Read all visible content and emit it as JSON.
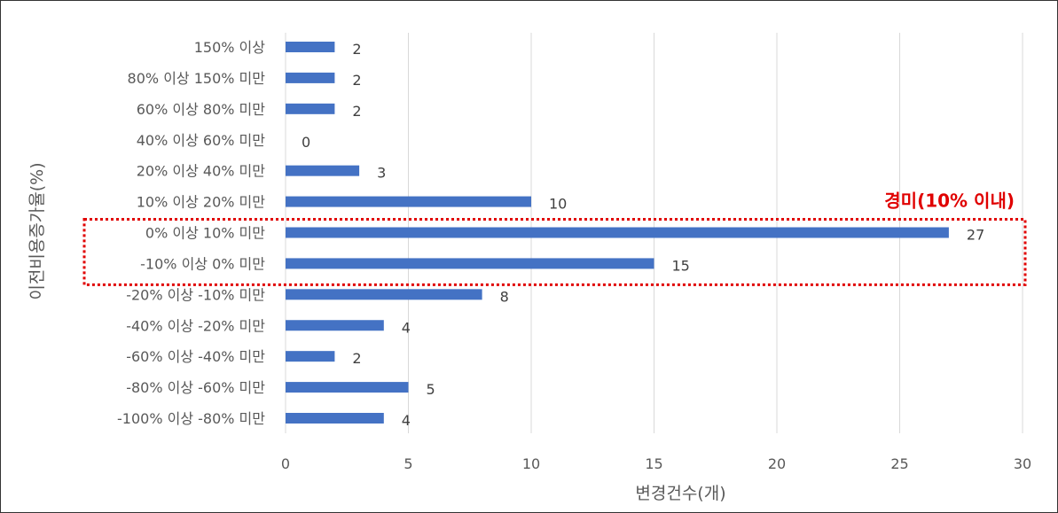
{
  "chart_data": {
    "type": "bar",
    "orientation": "horizontal",
    "categories": [
      "150% 이상",
      "80% 이상 150% 미만",
      "60% 이상 80% 미만",
      "40% 이상 60% 미만",
      "20% 이상 40% 미만",
      "10% 이상 20% 미만",
      "0% 이상 10% 미만",
      "-10% 이상 0% 미만",
      "-20% 이상 -10% 미만",
      "-40% 이상 -20% 미만",
      "-60% 이상 -40% 미만",
      "-80% 이상 -60% 미만",
      "-100% 이상 -80% 미만"
    ],
    "values": [
      2,
      2,
      2,
      0,
      3,
      10,
      27,
      15,
      8,
      4,
      2,
      5,
      4
    ],
    "xlabel": "변경건수(개)",
    "ylabel": "이전비용증가율(%)",
    "xlim": [
      0,
      30
    ],
    "xticks": [
      0,
      5,
      10,
      15,
      20,
      25,
      30
    ],
    "grid": "vertical",
    "legend": "none",
    "bar_color": "#4472C4",
    "annotation": {
      "text": "경미(10% 이내)",
      "color": "#E00000",
      "highlighted_categories": [
        "0% 이상 10% 미만",
        "-10% 이상 0% 미만"
      ]
    }
  }
}
